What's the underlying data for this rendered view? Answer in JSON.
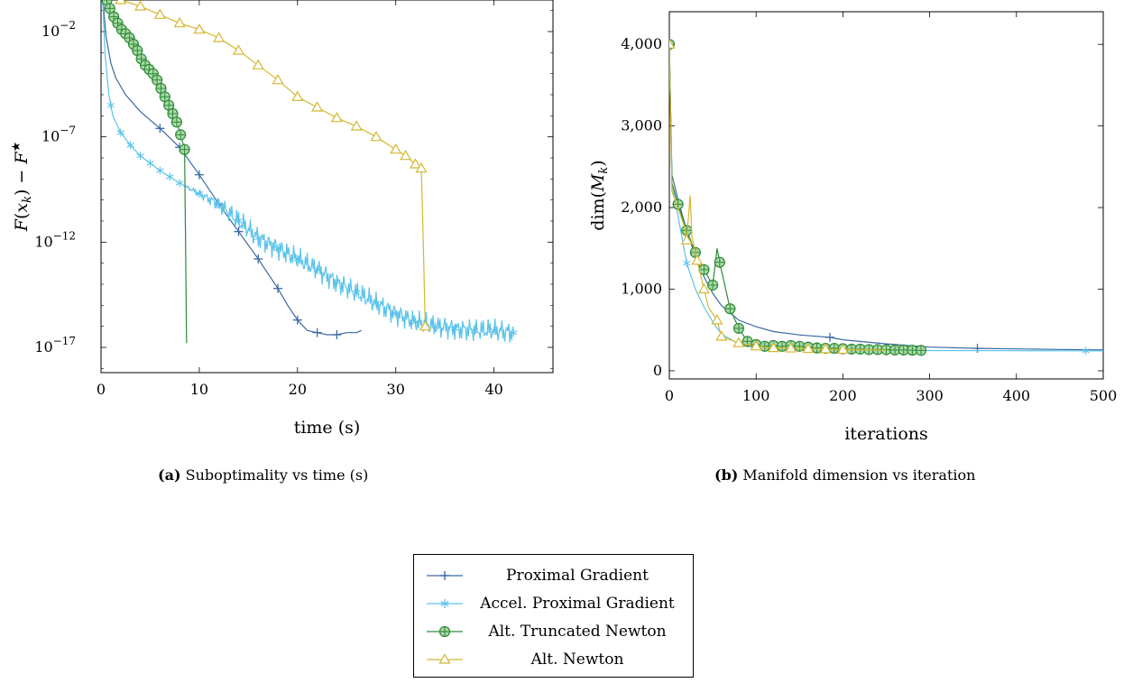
{
  "captions": {
    "a_label": "(a)",
    "a_text": "Suboptimality vs time (s)",
    "b_label": "(b)",
    "b_text": "Manifold dimension vs iteration"
  },
  "colors": {
    "prox_grad": "#3b6ba5",
    "accel_prox_grad": "#5bc3ea",
    "alt_trunc_newton": "#2d8a3b",
    "alt_newton": "#d4b732"
  },
  "legend": [
    {
      "label": "Proximal Gradient",
      "marker": "plus",
      "color": "#3b6ba5"
    },
    {
      "label": "Accel. Proximal Gradient",
      "marker": "asterisk",
      "color": "#5bc3ea"
    },
    {
      "label": "Alt. Truncated Newton",
      "marker": "oplus",
      "color": "#2d8a3b"
    },
    {
      "label": "Alt. Newton",
      "marker": "triangle",
      "color": "#d4b732"
    }
  ],
  "chart_data": [
    {
      "type": "line",
      "title": "",
      "xlabel": "time (s)",
      "ylabel": "F(x_k) − F*",
      "xlim": [
        0,
        46
      ],
      "ylog": true,
      "ylim_exp": [
        -18.2,
        -0.5
      ],
      "xticks": [
        0,
        10,
        20,
        30,
        40
      ],
      "yticks": [
        {
          "exp": -2,
          "label": "10",
          "sup": "−2"
        },
        {
          "exp": -7,
          "label": "10",
          "sup": "−7"
        },
        {
          "exp": -12,
          "label": "10",
          "sup": "−12"
        },
        {
          "exp": -17,
          "label": "10",
          "sup": "−17"
        }
      ],
      "grid": false,
      "series": [
        {
          "name": "Proximal Gradient",
          "key": "prox_grad",
          "marker": "plus",
          "x": [
            0,
            0.2,
            0.5,
            1.0,
            1.5,
            2.5,
            4,
            6,
            8,
            10,
            12,
            14,
            16,
            18,
            19,
            20,
            21,
            22,
            23,
            24,
            25,
            26,
            26.5
          ],
          "log10y": [
            -0.2,
            -0.5,
            -2.2,
            -3.5,
            -4.2,
            -5.0,
            -5.8,
            -6.6,
            -7.5,
            -8.8,
            -10.2,
            -11.5,
            -12.8,
            -14.2,
            -15.0,
            -15.7,
            -16.2,
            -16.3,
            -16.4,
            -16.4,
            -16.3,
            -16.3,
            -16.2
          ],
          "marker_every": [
            6,
            8,
            10,
            12,
            14,
            16,
            18,
            20,
            22,
            24
          ]
        },
        {
          "name": "Accel. Proximal Gradient",
          "key": "accel_prox_grad",
          "marker": "asterisk",
          "x": [
            0,
            0.2,
            0.4,
            0.8,
            1.2,
            2,
            3,
            4,
            6,
            8,
            10,
            12,
            14,
            16,
            18,
            20,
            22,
            24,
            26,
            28,
            30,
            32,
            34,
            36,
            38,
            40,
            42
          ],
          "log10y": [
            -0.2,
            -0.8,
            -3.0,
            -5.0,
            -6.0,
            -6.8,
            -7.4,
            -7.9,
            -8.6,
            -9.2,
            -9.7,
            -10.2,
            -11.0,
            -11.8,
            -12.3,
            -12.8,
            -13.3,
            -13.9,
            -14.4,
            -14.9,
            -15.4,
            -15.8,
            -16.0,
            -16.1,
            -16.2,
            -16.2,
            -16.3
          ],
          "marker_every": [
            1,
            2,
            3,
            4,
            5,
            6,
            7,
            8,
            10,
            12,
            14,
            16,
            18,
            20,
            22,
            24,
            26,
            28,
            30,
            32,
            34,
            36,
            38,
            40,
            42
          ]
        },
        {
          "name": "Alt. Truncated Newton",
          "key": "alt_trunc_newton",
          "marker": "oplus",
          "x": [
            0,
            0.3,
            0.6,
            0.9,
            1.3,
            1.7,
            2.1,
            2.5,
            2.9,
            3.3,
            3.7,
            4.1,
            4.5,
            4.9,
            5.3,
            5.7,
            6.1,
            6.5,
            6.9,
            7.3,
            7.7,
            8.1,
            8.5,
            8.6,
            8.7
          ],
          "log10y": [
            -0.2,
            -0.3,
            -0.5,
            -0.9,
            -1.3,
            -1.6,
            -1.9,
            -2.1,
            -2.3,
            -2.6,
            -2.9,
            -3.3,
            -3.6,
            -3.8,
            -4.0,
            -4.3,
            -4.7,
            -5.1,
            -5.5,
            -5.9,
            -6.3,
            -6.9,
            -7.6,
            -12.0,
            -16.8
          ],
          "marker_idx": [
            0,
            1,
            2,
            3,
            4,
            5,
            6,
            7,
            8,
            9,
            10,
            11,
            12,
            13,
            14,
            15,
            16,
            17,
            18,
            19,
            20,
            21,
            22
          ]
        },
        {
          "name": "Alt. Newton",
          "key": "alt_newton",
          "marker": "triangle",
          "x": [
            0,
            2,
            4,
            6,
            8,
            10,
            12,
            14,
            16,
            18,
            20,
            22,
            24,
            26,
            28,
            30,
            31,
            32,
            32.6,
            32.8,
            33.0
          ],
          "log10y": [
            -0.2,
            -0.5,
            -0.8,
            -1.2,
            -1.6,
            -1.9,
            -2.3,
            -2.9,
            -3.6,
            -4.3,
            -5.1,
            -5.6,
            -6.1,
            -6.5,
            -7.0,
            -7.6,
            -7.9,
            -8.3,
            -8.5,
            -12.0,
            -16.0
          ],
          "marker_idx": [
            0,
            1,
            2,
            3,
            4,
            5,
            6,
            7,
            8,
            9,
            10,
            11,
            12,
            13,
            14,
            15,
            16,
            17,
            18,
            20
          ]
        }
      ]
    },
    {
      "type": "line",
      "title": "",
      "xlabel": "iterations",
      "ylabel": "dim(M_k)",
      "xlim": [
        0,
        500
      ],
      "ylim": [
        -100,
        4400
      ],
      "xticks": [
        0,
        100,
        200,
        300,
        400,
        500
      ],
      "yticks": [
        0,
        1000,
        2000,
        3000,
        4000
      ],
      "ytick_labels": [
        "0",
        "1,000",
        "2,000",
        "3,000",
        "4,000"
      ],
      "grid": false,
      "series": [
        {
          "name": "Proximal Gradient",
          "key": "prox_grad",
          "marker": "plus",
          "x": [
            0,
            3,
            10,
            20,
            30,
            40,
            50,
            60,
            80,
            100,
            120,
            150,
            185,
            200,
            250,
            300,
            355,
            400,
            450,
            500
          ],
          "y": [
            4000,
            2400,
            2100,
            1720,
            1400,
            1150,
            950,
            800,
            620,
            540,
            480,
            440,
            410,
            380,
            330,
            290,
            275,
            268,
            262,
            255
          ],
          "marker_idx": [
            3,
            12,
            16
          ]
        },
        {
          "name": "Accel. Proximal Gradient",
          "key": "accel_prox_grad",
          "marker": "asterisk",
          "x": [
            0,
            3,
            10,
            20,
            30,
            40,
            50,
            60,
            80,
            100,
            150,
            200,
            300,
            400,
            480,
            500
          ],
          "y": [
            4000,
            2300,
            1900,
            1320,
            1000,
            780,
            600,
            450,
            330,
            280,
            255,
            250,
            248,
            246,
            245,
            244
          ],
          "marker_idx": [
            3,
            14
          ]
        },
        {
          "name": "Alt. Truncated Newton",
          "key": "alt_trunc_newton",
          "marker": "oplus",
          "x": [
            0,
            3,
            10,
            20,
            30,
            40,
            50,
            55,
            58,
            70,
            80,
            90,
            100,
            110,
            120,
            130,
            140,
            150,
            160,
            170,
            180,
            190,
            200,
            210,
            220,
            230,
            240,
            250,
            260,
            270,
            280,
            290
          ],
          "y": [
            4000,
            2300,
            2040,
            1720,
            1450,
            1240,
            1050,
            1500,
            1330,
            760,
            520,
            360,
            320,
            300,
            310,
            300,
            310,
            300,
            290,
            280,
            275,
            275,
            270,
            265,
            265,
            260,
            260,
            258,
            255,
            255,
            252,
            250
          ],
          "marker_idx": [
            0,
            2,
            3,
            4,
            5,
            6,
            8,
            9,
            10,
            11,
            12,
            13,
            14,
            15,
            16,
            17,
            18,
            19,
            20,
            21,
            22,
            23,
            24,
            25,
            26,
            27,
            28,
            29,
            30,
            31
          ]
        },
        {
          "name": "Alt. Newton",
          "key": "alt_newton",
          "marker": "triangle",
          "x": [
            0,
            3,
            8,
            13,
            18,
            20,
            24,
            26,
            32,
            40,
            45,
            55,
            60,
            70,
            80,
            100,
            120,
            140,
            160,
            180,
            200,
            220,
            240,
            250
          ],
          "y": [
            4000,
            2200,
            2050,
            1900,
            1750,
            1600,
            2150,
            1650,
            1350,
            1000,
            780,
            620,
            420,
            380,
            340,
            300,
            280,
            275,
            270,
            265,
            260,
            258,
            255,
            252
          ],
          "marker_idx": [
            0,
            5,
            8,
            9,
            11,
            12,
            14,
            15,
            16,
            17,
            18,
            19,
            20
          ]
        }
      ]
    }
  ]
}
